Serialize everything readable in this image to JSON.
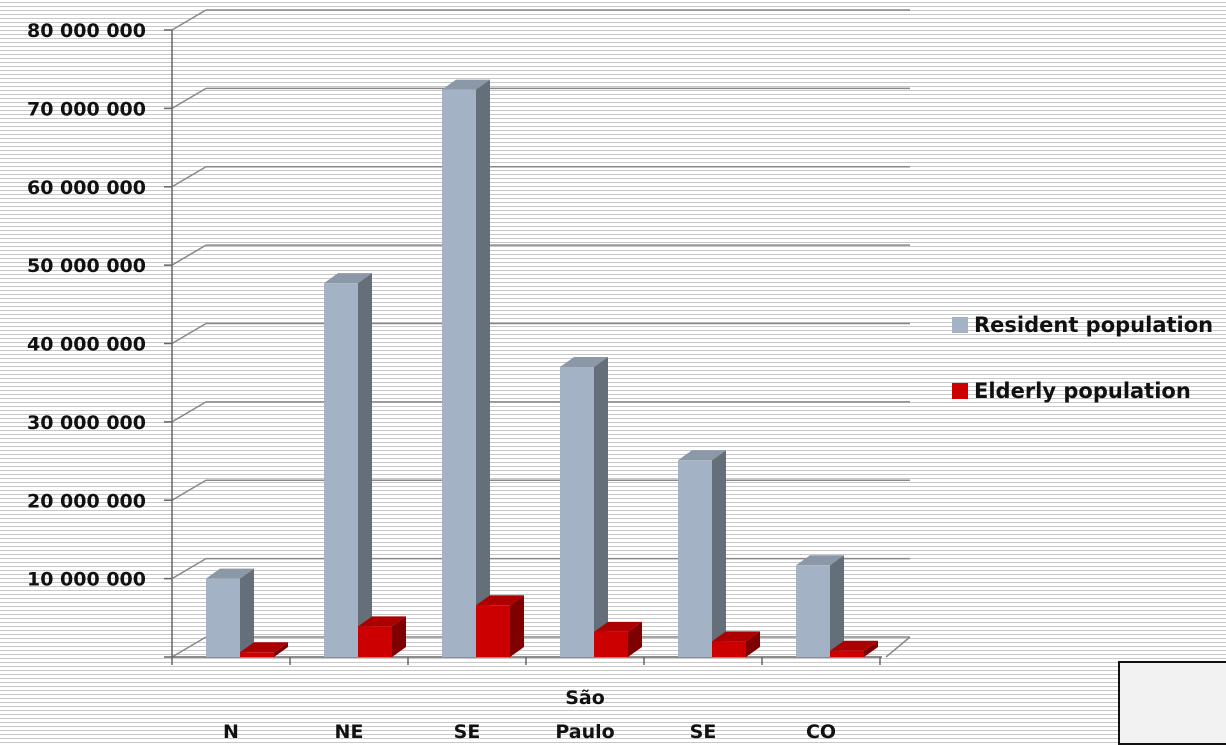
{
  "chart_data": {
    "type": "bar",
    "categories": [
      [
        "N"
      ],
      [
        "NE"
      ],
      [
        "SE"
      ],
      [
        "São",
        "Paulo"
      ],
      [
        "SE"
      ],
      [
        "CO"
      ]
    ],
    "series": [
      {
        "name": "Resident population",
        "values": [
          10000000,
          47700000,
          72400000,
          37000000,
          25100000,
          11700000
        ],
        "color": "#a3b3c5"
      },
      {
        "name": "Elderly population",
        "values": [
          600000,
          3900000,
          6600000,
          3200000,
          2000000,
          800000
        ],
        "color": "#cc0000"
      }
    ],
    "y_ticks": [
      "10 000 000",
      "20 000 000",
      "30 000 000",
      "40 000 000",
      "50 000 000",
      "60 000 000",
      "70 000 000",
      "80 000 000"
    ],
    "ylim": [
      0,
      80000000
    ],
    "grid": true,
    "legend_position": "right"
  }
}
